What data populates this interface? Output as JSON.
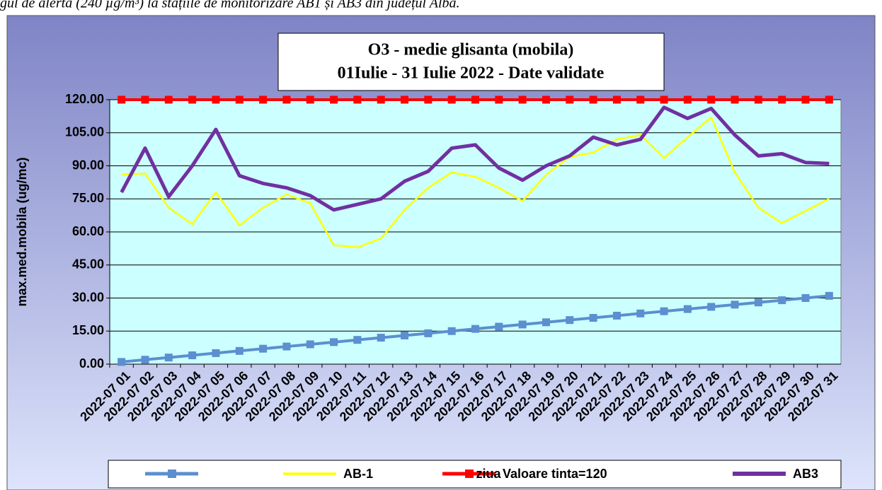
{
  "caption": "gul de alertă (240 µg/m³) la stațiile de monitorizare AB1 și AB3 din județul Alba.",
  "chart_data": {
    "type": "line",
    "title": [
      "O3 - medie glisanta (mobila)",
      "01Iulie - 31  Iulie 2022 -  Date validate"
    ],
    "y_label": "max.med.mobila (ug/mc)",
    "x_label": "ziua",
    "categories": [
      "2022-07 01",
      "2022-07 02",
      "2022-07 03",
      "2022-07 04",
      "2022-07 05",
      "2022-07 06",
      "2022-07 07",
      "2022-07 08",
      "2022-07 09",
      "2022-07 10",
      "2022-07 11",
      "2022-07 12",
      "2022-07 13",
      "2022-07 14",
      "2022-07 15",
      "2022-07 16",
      "2022-07 17",
      "2022-07 18",
      "2022-07 19",
      "2022-07 20",
      "2022-07 21",
      "2022-07 22",
      "2022-07 23",
      "2022-07 24",
      "2022-07 25",
      "2022-07 26",
      "2022-07 27",
      "2022-07 28",
      "2022-07 29",
      "2022-07 30",
      "2022-07 31"
    ],
    "series": [
      {
        "color": "#5b8fcf",
        "marker": "square",
        "values": [
          1,
          2,
          3,
          4,
          5,
          6,
          7,
          8,
          9,
          10,
          11,
          12,
          13,
          14,
          15,
          16,
          17,
          18,
          19,
          20,
          21,
          22,
          23,
          24,
          25,
          26,
          27,
          28,
          29,
          30,
          31
        ]
      },
      {
        "name": "AB-1",
        "color": "#ffff00",
        "values": [
          86,
          86.5,
          71,
          63.5,
          78,
          63,
          71,
          77,
          73,
          54,
          53,
          57,
          70,
          80,
          87,
          85,
          80,
          74,
          86,
          94,
          96,
          102,
          104,
          93.5,
          103,
          112,
          87,
          71,
          64,
          69.5,
          75
        ]
      },
      {
        "name": "Valoare tinta=120",
        "color": "#ff0000",
        "marker": "square",
        "values": [
          120,
          120,
          120,
          120,
          120,
          120,
          120,
          120,
          120,
          120,
          120,
          120,
          120,
          120,
          120,
          120,
          120,
          120,
          120,
          120,
          120,
          120,
          120,
          120,
          120,
          120,
          120,
          120,
          120,
          120,
          120
        ]
      },
      {
        "name": "AB3",
        "color": "#7030a0",
        "values": [
          78,
          98,
          76,
          90,
          106.5,
          85.5,
          82,
          80,
          76.5,
          70,
          72.5,
          75,
          83,
          87.5,
          98,
          99.5,
          89,
          83.5,
          90,
          94.5,
          103,
          99.5,
          102,
          116.5,
          111.5,
          116,
          104,
          94.5,
          95.5,
          91.5,
          91
        ]
      }
    ],
    "ylim": [
      0,
      120
    ],
    "yticks": [
      {
        "value": 0,
        "label": "0.00"
      },
      {
        "value": 15,
        "label": "15.00"
      },
      {
        "value": 30,
        "label": "30.00"
      },
      {
        "value": 45,
        "label": "45.00"
      },
      {
        "value": 60,
        "label": "60.00"
      },
      {
        "value": 75,
        "label": "75.00"
      },
      {
        "value": 90,
        "label": "90.00"
      },
      {
        "value": 105,
        "label": "105.00"
      },
      {
        "value": 120,
        "label": "120.00"
      }
    ],
    "grid": true
  }
}
